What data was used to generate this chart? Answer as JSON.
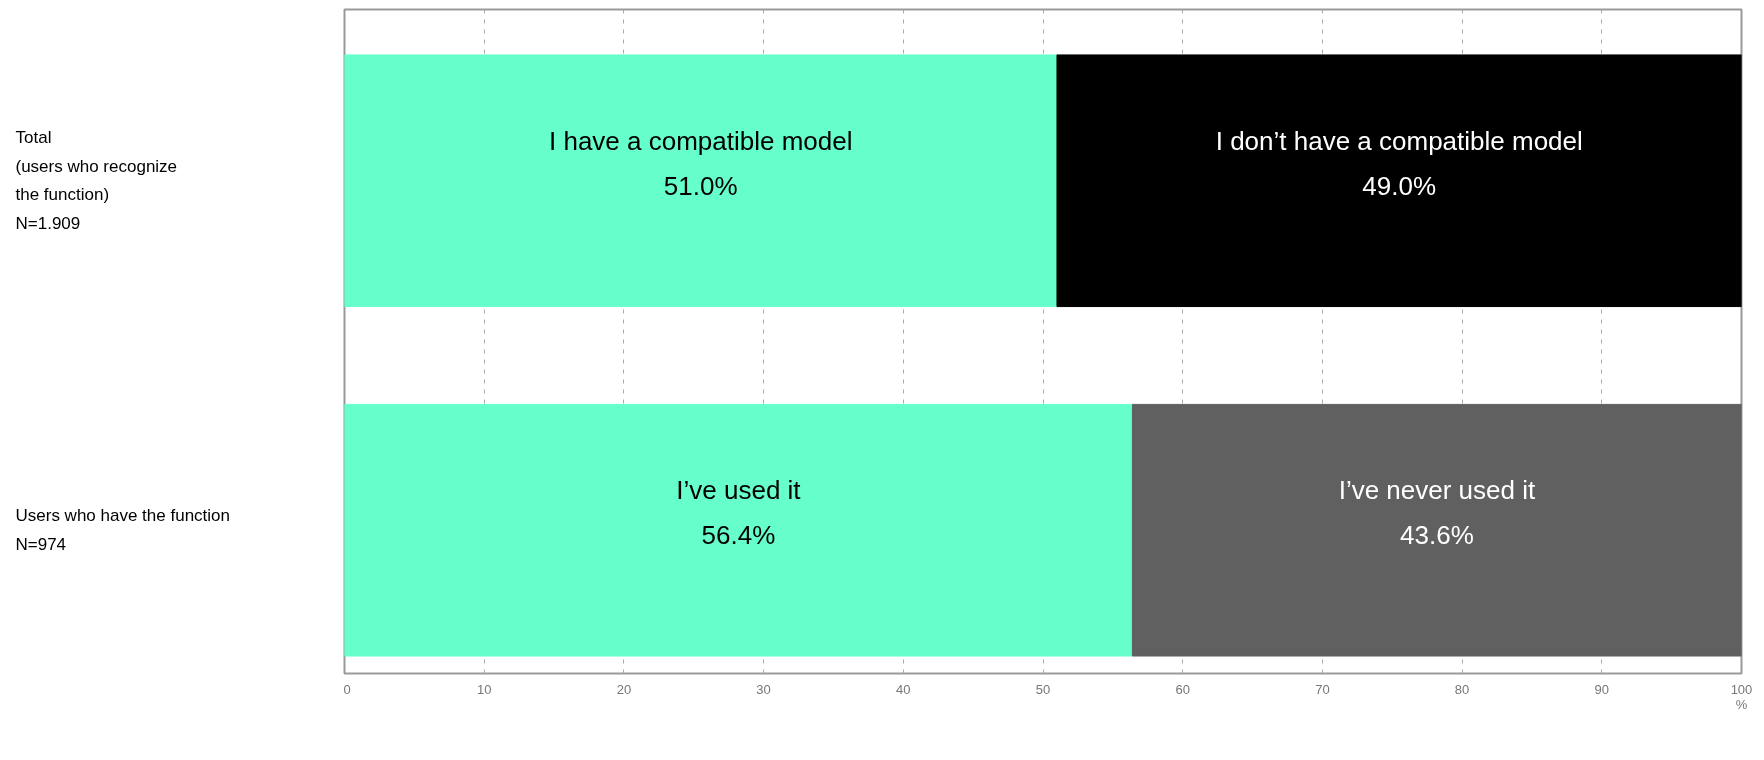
{
  "chart_data": {
    "type": "bar",
    "orientation": "horizontal",
    "stacked": true,
    "categories": [
      "Total\n(users who recognize\nthe function)\nN=1.909",
      "Users who have the function\nN=974"
    ],
    "series": [
      {
        "colors": [
          "#66ffcc",
          "#66ffcc"
        ],
        "values": [
          51.0,
          56.4
        ],
        "value_labels": [
          "I have a compatible model\n51.0%",
          "I’ve used it\n56.4%"
        ]
      },
      {
        "colors": [
          "#000000",
          "#606060"
        ],
        "values": [
          49.0,
          43.6
        ],
        "value_labels": [
          "I don’t have a compatible model\n49.0%",
          "I’ve never used it\n43.6%"
        ]
      }
    ],
    "xlabel": "%",
    "xlim": [
      0,
      100
    ],
    "xticks": [
      0,
      10,
      20,
      30,
      40,
      50,
      60,
      70,
      80,
      90,
      100
    ],
    "grid": "x"
  }
}
